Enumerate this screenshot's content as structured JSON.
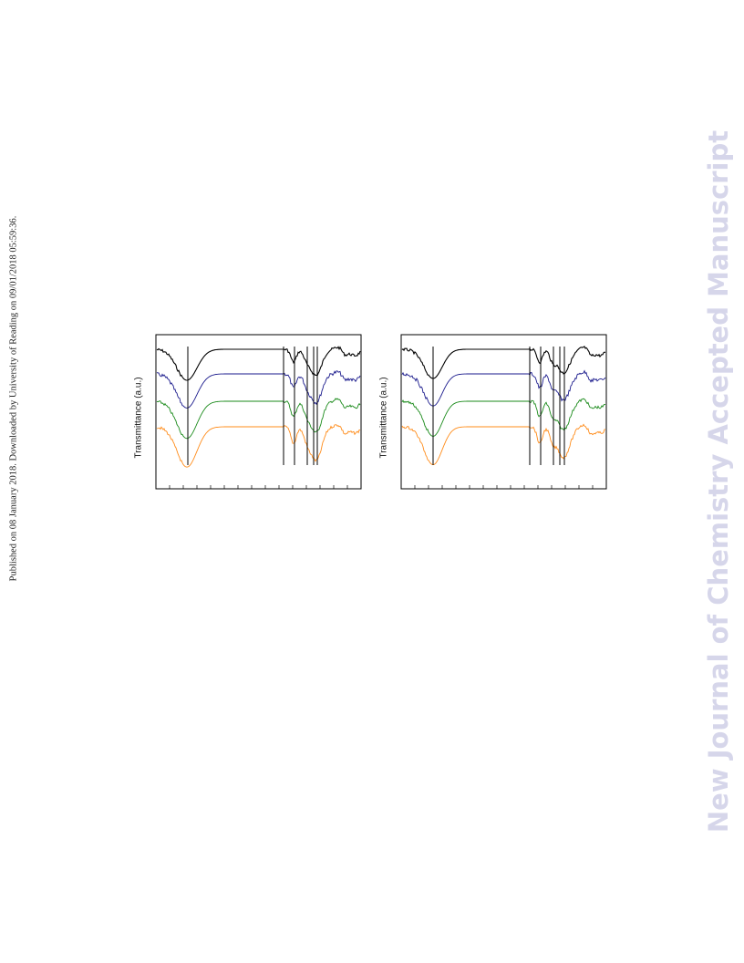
{
  "side_note": "Published on 08 January 2018. Downloaded by University of Reading on 09/01/2018 05:59:36.",
  "panels": [
    {
      "y_label": "Transmittance (a.u.)"
    },
    {
      "y_label": "Transmittance (a.u.)"
    }
  ],
  "watermark": "New Journal of Chemistry Accepted Manuscript"
}
